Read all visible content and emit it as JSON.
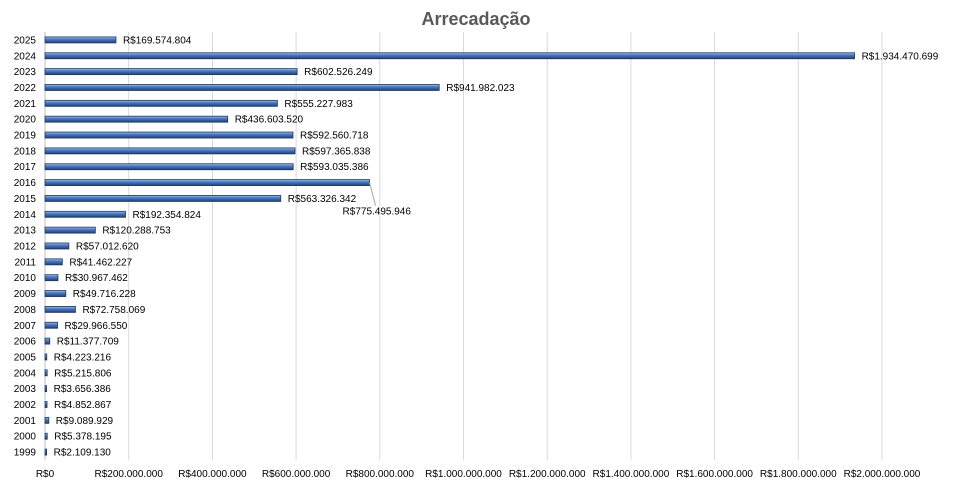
{
  "chart_data": {
    "type": "bar",
    "orientation": "horizontal",
    "title": "Arrecadação",
    "xlim": [
      0,
      2000000000
    ],
    "x_ticks": [
      0,
      200000000,
      400000000,
      600000000,
      800000000,
      1000000000,
      1200000000,
      1400000000,
      1600000000,
      1800000000,
      2000000000
    ],
    "x_tick_labels": [
      "R$0",
      "R$200.000.000",
      "R$400.000.000",
      "R$600.000.000",
      "R$800.000.000",
      "R$1.000.000.000",
      "R$1.200.000.000",
      "R$1.400.000.000",
      "R$1.600.000.000",
      "R$1.800.000.000",
      "R$2.000.000.000"
    ],
    "grid": true,
    "bar_color": "#4472c4",
    "categories": [
      "2025",
      "2024",
      "2023",
      "2022",
      "2021",
      "2020",
      "2019",
      "2018",
      "2017",
      "2016",
      "2015",
      "2014",
      "2013",
      "2012",
      "2011",
      "2010",
      "2009",
      "2008",
      "2007",
      "2006",
      "2005",
      "2004",
      "2003",
      "2002",
      "2001",
      "2000",
      "1999"
    ],
    "values": [
      169574804,
      1934470699,
      602526249,
      941982023,
      555227983,
      436603520,
      592560718,
      597365838,
      593035386,
      775495946,
      563326342,
      192354824,
      120288753,
      57012620,
      41462227,
      30967462,
      49716228,
      72758069,
      29966550,
      11377709,
      4223216,
      5215806,
      3656386,
      4852867,
      9089929,
      5378195,
      2109130
    ],
    "data_labels": [
      "R$169.574.804",
      "R$1.934.470.699",
      "R$602.526.249",
      "R$941.982.023",
      "R$555.227.983",
      "R$436.603.520",
      "R$592.560.718",
      "R$597.365.838",
      "R$593.035.386",
      "R$775.495.946",
      "R$563.326.342",
      "R$192.354.824",
      "R$120.288.753",
      "R$57.012.620",
      "R$41.462.227",
      "R$30.967.462",
      "R$49.716.228",
      "R$72.758.069",
      "R$29.966.550",
      "R$11.377.709",
      "R$4.223.216",
      "R$5.215.806",
      "R$3.656.386",
      "R$4.852.867",
      "R$9.089.929",
      "R$5.378.195",
      "R$2.109.130"
    ]
  }
}
